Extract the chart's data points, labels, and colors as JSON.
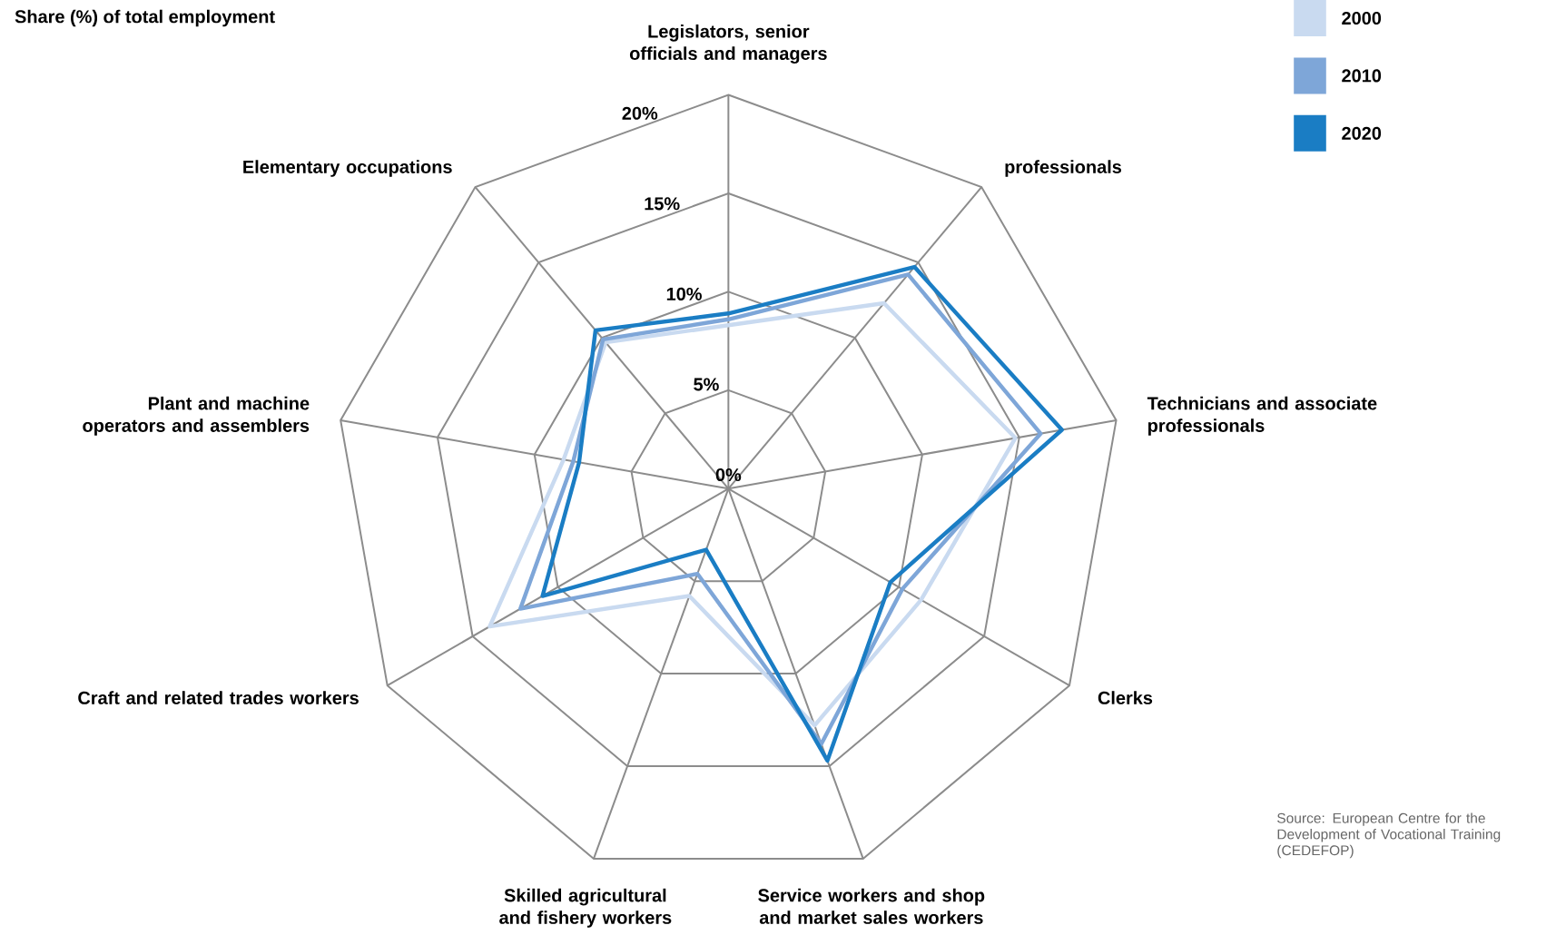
{
  "chart_data": {
    "type": "radar",
    "title": "Share (%) of total employment",
    "categories": [
      "Legislators, senior officials and managers",
      "professionals",
      "Technicians and associate professionals",
      "Clerks",
      "Service workers and shop and market sales workers",
      "Skilled agricultural and fishery workers",
      "Craft and related trades workers",
      "Plant and machine operators and assemblers",
      "Elementary occupations"
    ],
    "series": [
      {
        "name": "2000",
        "color": "#c9daf0",
        "values": [
          8.3,
          12.3,
          14.8,
          11.3,
          12.8,
          5.8,
          14.0,
          8.5,
          9.7
        ]
      },
      {
        "name": "2010",
        "color": "#7ea6d8",
        "values": [
          8.6,
          14.2,
          16.1,
          10.2,
          13.8,
          4.6,
          12.2,
          8.0,
          9.9
        ]
      },
      {
        "name": "2020",
        "color": "#1a7dc4",
        "values": [
          8.9,
          14.7,
          17.2,
          9.5,
          14.7,
          3.3,
          10.9,
          7.7,
          10.5
        ]
      }
    ],
    "ylim": [
      0,
      20
    ],
    "yticks": [
      {
        "value": 0,
        "label": "0%"
      },
      {
        "value": 5,
        "label": "5%"
      },
      {
        "value": 10,
        "label": "10%"
      },
      {
        "value": 15,
        "label": "15%"
      },
      {
        "value": 20,
        "label": "20%"
      }
    ],
    "grid": true,
    "legend": "top right",
    "annotations": [
      "Source: European Centre for the Development of Vocational Training (CEDEFOP)"
    ]
  }
}
